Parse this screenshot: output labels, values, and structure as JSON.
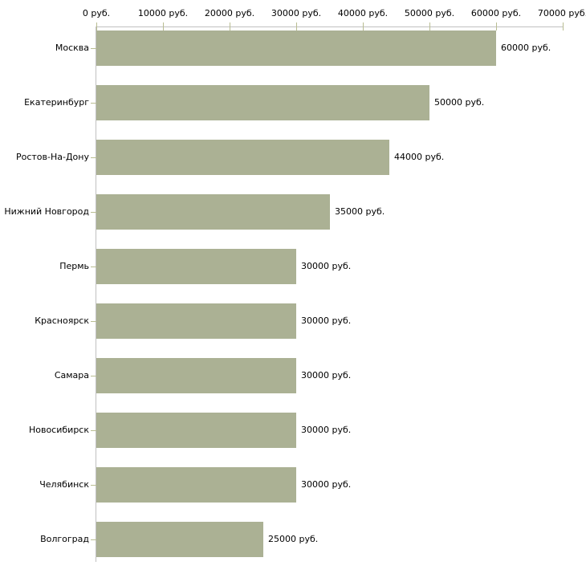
{
  "chart_data": {
    "type": "bar",
    "orientation": "horizontal",
    "title": "",
    "xlabel": "",
    "ylabel": "",
    "unit": "руб.",
    "xlim": [
      0,
      70000
    ],
    "grid": false,
    "legend": null,
    "categories": [
      "Москва",
      "Екатеринбург",
      "Ростов-На-Дону",
      "Нижний Новгород",
      "Пермь",
      "Красноярск",
      "Самара",
      "Новосибирск",
      "Челябинск",
      "Волгоград"
    ],
    "values": [
      60000,
      50000,
      44000,
      35000,
      30000,
      30000,
      30000,
      30000,
      30000,
      25000
    ],
    "value_labels": [
      "60000 руб.",
      "50000 руб.",
      "44000 руб.",
      "35000 руб.",
      "30000 руб.",
      "30000 руб.",
      "30000 руб.",
      "30000 руб.",
      "30000 руб.",
      "25000 руб."
    ],
    "x_ticks": [
      {
        "value": 0,
        "label": "0 руб."
      },
      {
        "value": 10000,
        "label": "10000 руб."
      },
      {
        "value": 20000,
        "label": "20000 руб."
      },
      {
        "value": 30000,
        "label": "30000 руб."
      },
      {
        "value": 40000,
        "label": "40000 руб."
      },
      {
        "value": 50000,
        "label": "50000 руб."
      },
      {
        "value": 60000,
        "label": "60000 руб."
      },
      {
        "value": 70000,
        "label": "70000 руб."
      }
    ],
    "colors": {
      "bar": "#abb194",
      "axis_line": "#c0c0c0",
      "tick_mark": "#b9bd92",
      "text": "#000000",
      "background": "#ffffff"
    }
  }
}
